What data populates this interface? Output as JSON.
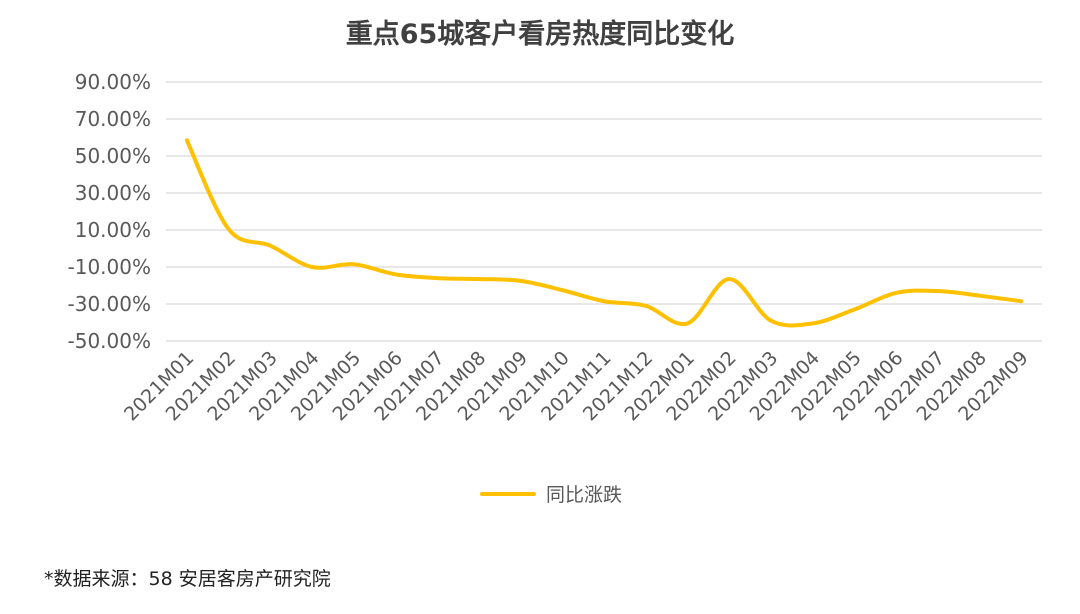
{
  "chart_data": {
    "type": "line",
    "title": "重点65城客户看房热度同比变化",
    "xlabel": "",
    "ylabel": "",
    "categories": [
      "2021M01",
      "2021M02",
      "2021M03",
      "2021M04",
      "2021M05",
      "2021M06",
      "2021M07",
      "2021M08",
      "2021M09",
      "2021M10",
      "2021M11",
      "2021M12",
      "2022M01",
      "2022M02",
      "2022M03",
      "2022M04",
      "2022M05",
      "2022M06",
      "2022M07",
      "2022M08",
      "2022M09"
    ],
    "ylim": [
      -50,
      90
    ],
    "yticks": [
      90,
      70,
      50,
      30,
      10,
      -10,
      -30,
      -50
    ],
    "ytick_labels": [
      "90.00%",
      "70.00%",
      "50.00%",
      "30.00%",
      "10.00%",
      "-10.00%",
      "-30.00%",
      "-50.00%"
    ],
    "grid": true,
    "legend_position": "bottom",
    "series": [
      {
        "name": "同比涨跌",
        "color": "#FFC000",
        "values": [
          58.5,
          10.5,
          1.5,
          -10,
          -8.5,
          -14,
          -16,
          -16.5,
          -17.5,
          -22.5,
          -28.5,
          -31,
          -40.5,
          -16.5,
          -39,
          -40.5,
          -33,
          -24,
          -23,
          -25.5,
          -28.5
        ]
      }
    ]
  },
  "legend": {
    "label": "同比涨跌",
    "color": "#FFC000"
  },
  "source_note": "*数据来源：58 安居客房产研究院"
}
